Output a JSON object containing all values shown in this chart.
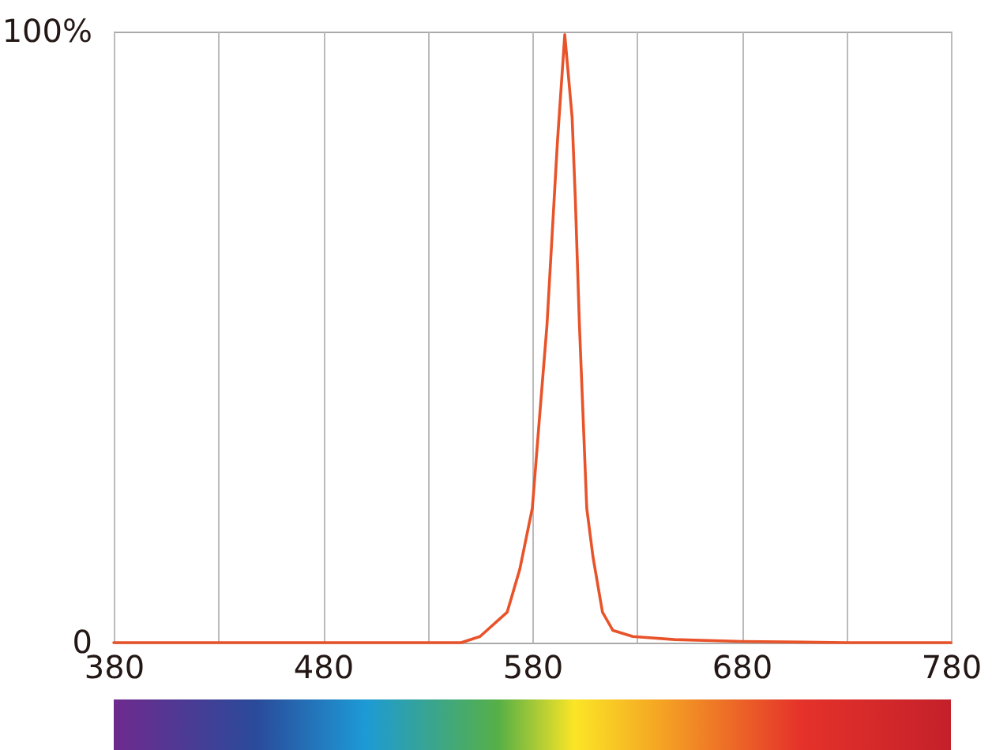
{
  "chart_data": {
    "type": "line",
    "x": [
      380,
      480,
      530,
      546,
      555,
      568,
      574,
      580,
      583,
      587,
      592,
      595.5,
      599,
      600.5,
      602.5,
      606,
      609,
      613.5,
      618.5,
      628,
      648,
      680,
      730,
      780
    ],
    "series": [
      {
        "color": "#e8532a",
        "values": [
          0,
          0,
          0,
          0,
          1,
          5,
          12,
          22,
          35,
          52,
          82,
          99.5,
          86,
          73,
          52,
          22,
          14,
          5,
          2,
          1,
          0.5,
          0.2,
          0,
          0
        ]
      }
    ],
    "xlim": [
      380,
      780
    ],
    "xticks": [
      380,
      {
        "value": 430,
        "label": null
      },
      480,
      {
        "value": 530,
        "label": null
      },
      580,
      {
        "value": 630,
        "label": null
      },
      680,
      {
        "value": 730,
        "label": null
      },
      780
    ],
    "ylim": [
      0,
      100
    ],
    "yticks": [
      0,
      {
        "value": 100,
        "label": "100%"
      }
    ],
    "grid": "x",
    "line_style": "solid",
    "marker": "none"
  }
}
